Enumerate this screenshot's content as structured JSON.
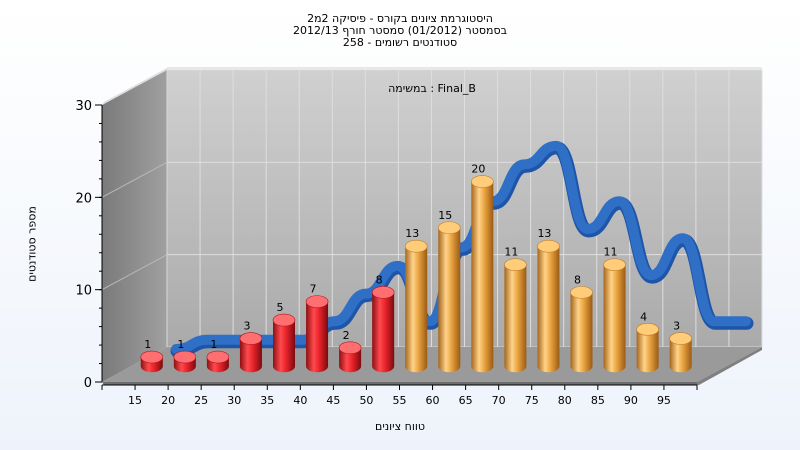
{
  "chart_data": {
    "type": "bar",
    "title_lines": [
      "היסטוגרמת ציונים בקורס - פיסיקה 2מ2",
      "בסמסטר  (01/2012)  סמסטר חורף 2012/13",
      "סטודנטים רשומים - 258"
    ],
    "annotation": "במשימה : Final_B",
    "xlabel": "טווח ציונים",
    "ylabel": "מספר סטודנטים",
    "ylim": [
      0,
      30
    ],
    "y_ticks": [
      "0",
      "10",
      "20",
      "30"
    ],
    "categories": [
      "15",
      "20",
      "25",
      "30",
      "35",
      "40",
      "45",
      "50",
      "55",
      "60",
      "65",
      "70",
      "75",
      "80",
      "85",
      "90",
      "95"
    ],
    "bar_values": [
      1,
      1,
      1,
      3,
      5,
      7,
      2,
      8,
      13,
      15,
      20,
      11,
      13,
      8,
      11,
      4,
      3
    ],
    "bar_labels": [
      "1",
      "1",
      "1",
      "3",
      "5",
      "7",
      "2",
      "8",
      "13",
      "15",
      "20",
      "11",
      "13",
      "8",
      "11",
      "4",
      "3"
    ],
    "fail_threshold": 55,
    "curve": [
      0,
      1,
      1,
      1,
      1,
      3,
      6,
      9,
      3,
      11,
      16,
      20,
      22,
      13,
      16,
      8,
      12,
      3,
      3
    ],
    "grid": true,
    "colors": {
      "fail_bar": "#e8232b",
      "pass_bar": "#e9a440",
      "curve": "#2f6fc6",
      "back_wall": "#b5b5b5",
      "left_wall": "#8c8c8c",
      "floor": "#9a9a9a"
    }
  }
}
